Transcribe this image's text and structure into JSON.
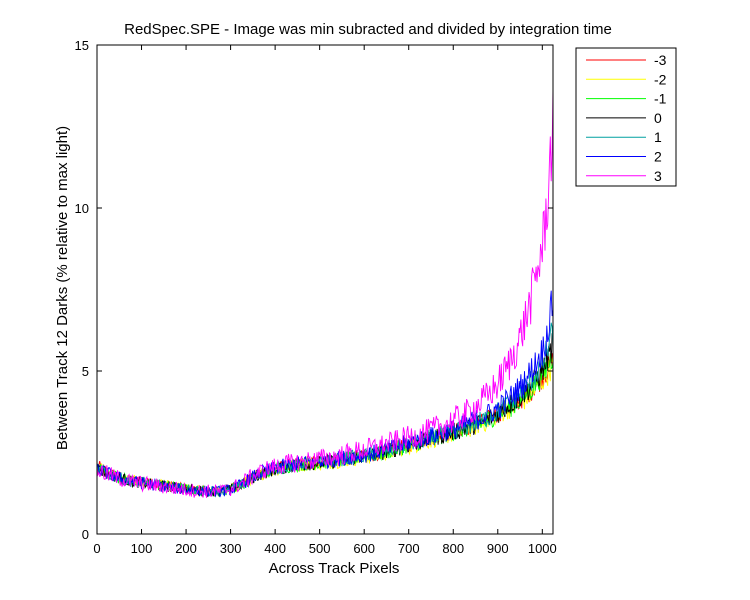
{
  "chart_data": {
    "type": "line",
    "title": "RedSpec.SPE - Image was min subracted and divided by integration time",
    "xlabel": "Across Track Pixels",
    "ylabel": "Between Track 12 Darks (% relative to max light)",
    "xlim": [
      0,
      1024
    ],
    "ylim": [
      0,
      15
    ],
    "xticks": [
      0,
      100,
      200,
      300,
      400,
      500,
      600,
      700,
      800,
      900,
      1000
    ],
    "yticks": [
      0,
      5,
      10,
      15
    ],
    "xtick_labels": [
      "0",
      "100",
      "200",
      "300",
      "400",
      "500",
      "600",
      "700",
      "800",
      "900",
      "1000"
    ],
    "ytick_labels": [
      "0",
      "5",
      "10",
      "15"
    ],
    "grid": false,
    "legend_position": "outside-top-right",
    "x": [
      0,
      25,
      50,
      75,
      100,
      125,
      150,
      175,
      200,
      225,
      250,
      275,
      300,
      325,
      350,
      375,
      400,
      425,
      450,
      475,
      500,
      525,
      550,
      575,
      600,
      625,
      650,
      675,
      700,
      725,
      750,
      775,
      800,
      825,
      850,
      875,
      900,
      925,
      950,
      975,
      1000,
      1010,
      1024
    ],
    "series": [
      {
        "name": "-3",
        "color": "#ff0000",
        "values": [
          2.1,
          1.9,
          1.75,
          1.65,
          1.6,
          1.55,
          1.5,
          1.45,
          1.4,
          1.35,
          1.32,
          1.3,
          1.38,
          1.55,
          1.75,
          1.9,
          2.0,
          2.1,
          2.15,
          2.2,
          2.2,
          2.25,
          2.3,
          2.35,
          2.4,
          2.45,
          2.55,
          2.65,
          2.75,
          2.85,
          2.95,
          3.05,
          3.15,
          3.25,
          3.35,
          3.5,
          3.7,
          3.9,
          4.1,
          4.4,
          4.8,
          5.0,
          5.3
        ],
        "noise": 0.18
      },
      {
        "name": "-2",
        "color": "#ffff00",
        "values": [
          2.05,
          1.88,
          1.74,
          1.64,
          1.58,
          1.54,
          1.49,
          1.44,
          1.39,
          1.35,
          1.31,
          1.3,
          1.37,
          1.53,
          1.72,
          1.87,
          1.97,
          2.05,
          2.1,
          2.14,
          2.16,
          2.2,
          2.25,
          2.3,
          2.35,
          2.4,
          2.5,
          2.58,
          2.68,
          2.78,
          2.88,
          2.98,
          3.08,
          3.18,
          3.3,
          3.45,
          3.65,
          3.85,
          4.0,
          4.3,
          4.7,
          4.9,
          5.2
        ],
        "noise": 0.2
      },
      {
        "name": "-1",
        "color": "#00ff00",
        "values": [
          2.02,
          1.87,
          1.73,
          1.63,
          1.57,
          1.53,
          1.48,
          1.43,
          1.38,
          1.34,
          1.31,
          1.3,
          1.37,
          1.52,
          1.72,
          1.88,
          1.98,
          2.07,
          2.12,
          2.16,
          2.18,
          2.22,
          2.27,
          2.32,
          2.38,
          2.43,
          2.52,
          2.62,
          2.72,
          2.82,
          2.92,
          3.02,
          3.12,
          3.22,
          3.32,
          3.48,
          3.68,
          3.88,
          4.1,
          4.45,
          4.9,
          5.1,
          5.5
        ],
        "noise": 0.2
      },
      {
        "name": "0",
        "color": "#000000",
        "values": [
          2.0,
          1.86,
          1.72,
          1.62,
          1.57,
          1.52,
          1.47,
          1.42,
          1.38,
          1.34,
          1.31,
          1.3,
          1.36,
          1.52,
          1.72,
          1.88,
          1.98,
          2.06,
          2.12,
          2.16,
          2.18,
          2.22,
          2.28,
          2.33,
          2.38,
          2.44,
          2.53,
          2.63,
          2.73,
          2.83,
          2.93,
          3.03,
          3.13,
          3.23,
          3.35,
          3.5,
          3.7,
          3.95,
          4.2,
          4.55,
          5.0,
          5.3,
          5.8
        ],
        "noise": 0.2
      },
      {
        "name": "1",
        "color": "#00a0a0",
        "values": [
          2.0,
          1.86,
          1.72,
          1.62,
          1.56,
          1.52,
          1.47,
          1.42,
          1.37,
          1.33,
          1.31,
          1.3,
          1.36,
          1.52,
          1.73,
          1.9,
          2.0,
          2.08,
          2.13,
          2.17,
          2.2,
          2.24,
          2.3,
          2.35,
          2.4,
          2.46,
          2.55,
          2.65,
          2.75,
          2.85,
          2.95,
          3.05,
          3.15,
          3.27,
          3.4,
          3.55,
          3.75,
          4.0,
          4.3,
          4.7,
          5.2,
          5.6,
          6.2
        ],
        "noise": 0.2
      },
      {
        "name": "2",
        "color": "#0000ff",
        "values": [
          1.98,
          1.85,
          1.71,
          1.61,
          1.56,
          1.51,
          1.46,
          1.41,
          1.37,
          1.33,
          1.31,
          1.3,
          1.36,
          1.53,
          1.75,
          1.92,
          2.02,
          2.1,
          2.15,
          2.19,
          2.22,
          2.27,
          2.33,
          2.38,
          2.43,
          2.5,
          2.6,
          2.7,
          2.8,
          2.9,
          3.0,
          3.1,
          3.22,
          3.35,
          3.5,
          3.65,
          3.85,
          4.15,
          4.5,
          5.0,
          5.6,
          6.1,
          7.2
        ],
        "noise": 0.22
      },
      {
        "name": "3",
        "color": "#ff00ff",
        "values": [
          1.95,
          1.83,
          1.7,
          1.6,
          1.55,
          1.5,
          1.45,
          1.4,
          1.36,
          1.33,
          1.31,
          1.31,
          1.38,
          1.56,
          1.78,
          1.96,
          2.06,
          2.15,
          2.2,
          2.25,
          2.3,
          2.35,
          2.42,
          2.5,
          2.58,
          2.66,
          2.75,
          2.85,
          2.95,
          3.05,
          3.18,
          3.32,
          3.48,
          3.65,
          3.9,
          4.2,
          4.6,
          5.2,
          6.0,
          7.2,
          8.8,
          10.0,
          12.6
        ],
        "noise": 0.28
      }
    ]
  }
}
